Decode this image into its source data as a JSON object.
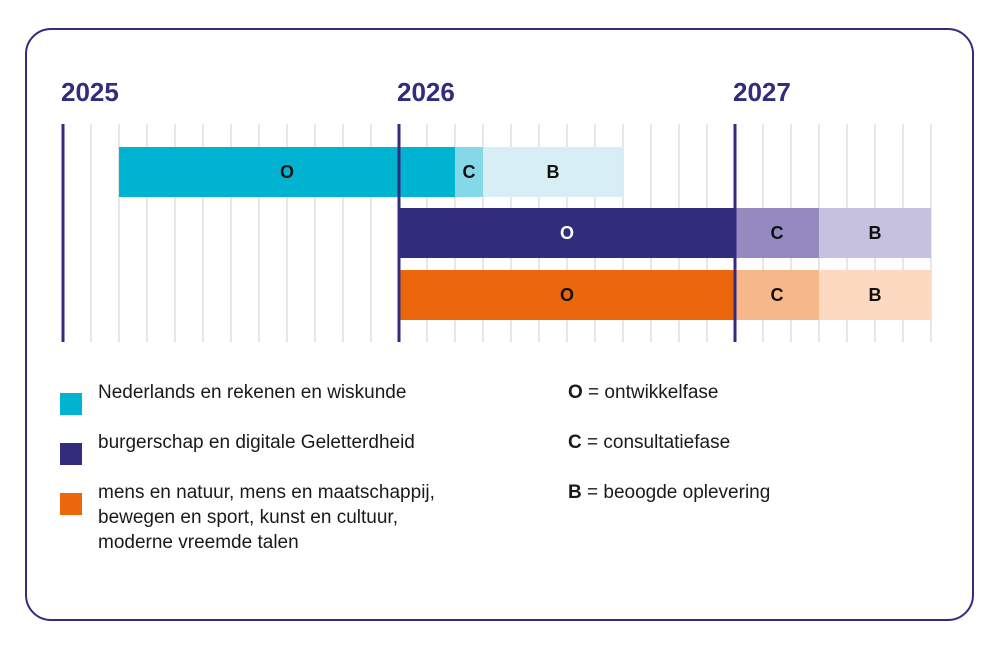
{
  "chart_data": {
    "type": "gantt",
    "years": [
      "2025",
      "2026",
      "2027"
    ],
    "x_unit": "months",
    "x_range": [
      "2025-01",
      "2027-08"
    ],
    "minor_grid": "monthly",
    "rows": [
      {
        "legend": "Nederlands en rekenen en wiskunde",
        "color": "#00b3d1",
        "segments": [
          {
            "phase": "O",
            "start": "2025-03",
            "end": "2026-02",
            "color": "#00b3d1"
          },
          {
            "phase": "C",
            "start": "2026-03",
            "end": "2026-03",
            "color": "#84d8e8"
          },
          {
            "phase": "B",
            "start": "2026-04",
            "end": "2026-08",
            "color": "#d8eef5"
          }
        ]
      },
      {
        "legend": "burgerschap en digitale Geletterdheid",
        "color": "#322c7c",
        "segments": [
          {
            "phase": "O",
            "start": "2026-01",
            "end": "2026-12",
            "color": "#322c7c"
          },
          {
            "phase": "C",
            "start": "2027-01",
            "end": "2027-03",
            "color": "#948ac0"
          },
          {
            "phase": "B",
            "start": "2027-04",
            "end": "2027-07",
            "color": "#c6c1df"
          }
        ]
      },
      {
        "legend": "mens en natuur, mens en maatschappij, bewegen en sport, kunst en cultuur, moderne vreemde talen",
        "color": "#ec670c",
        "segments": [
          {
            "phase": "O",
            "start": "2026-01",
            "end": "2026-12",
            "color": "#ec670c"
          },
          {
            "phase": "C",
            "start": "2027-01",
            "end": "2027-03",
            "color": "#f6b78b"
          },
          {
            "phase": "B",
            "start": "2027-04",
            "end": "2027-07",
            "color": "#fdd9bf"
          }
        ]
      }
    ],
    "phases": [
      {
        "code": "O",
        "text": " = ontwikkelfase"
      },
      {
        "code": "C",
        "text": " = consultatiefase"
      },
      {
        "code": "B",
        "text": " = beoogde oplevering"
      }
    ],
    "legend_lines": [
      [
        "Nederlands en rekenen en wiskunde"
      ],
      [
        "burgerschap en digitale Geletterdheid"
      ],
      [
        "mens en natuur, mens en maatschappij,",
        "bewegen en sport, kunst en cultuur,",
        "moderne vreemde talen"
      ]
    ],
    "colors": {
      "frame": "#322c7c",
      "year_axis": "#322c7c",
      "grid": "#cfcfd6"
    }
  }
}
